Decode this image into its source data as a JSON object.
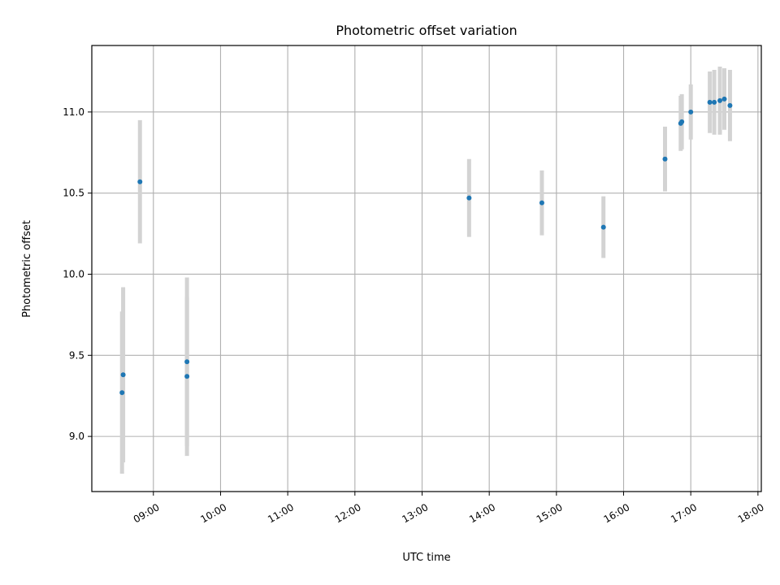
{
  "chart_data": {
    "type": "scatter",
    "title": "Photometric offset variation",
    "xlabel": "UTC time",
    "ylabel": "Photometric offset",
    "x_axis_type": "time",
    "xlim": [
      "08:05",
      "18:03"
    ],
    "ylim": [
      8.66,
      11.41
    ],
    "grid": true,
    "x_ticks": [
      "09:00",
      "10:00",
      "11:00",
      "12:00",
      "13:00",
      "14:00",
      "15:00",
      "16:00",
      "17:00",
      "18:00"
    ],
    "y_ticks": [
      9.0,
      9.5,
      10.0,
      10.5,
      11.0
    ],
    "y_tick_labels": [
      "9.0",
      "9.5",
      "10.0",
      "10.5",
      "11.0"
    ],
    "colors": {
      "point": "#1f77b4",
      "errorbar": "#d3d3d3",
      "grid": "#b0b0b0"
    },
    "points": [
      {
        "x": "08:32",
        "y": 9.27,
        "err": 0.5
      },
      {
        "x": "08:33",
        "y": 9.38,
        "err": 0.54
      },
      {
        "x": "08:48",
        "y": 10.57,
        "err": 0.38
      },
      {
        "x": "09:30",
        "y": 9.46,
        "err": 0.52
      },
      {
        "x": "09:30",
        "y": 9.37,
        "err": 0.49
      },
      {
        "x": "13:42",
        "y": 10.47,
        "err": 0.24
      },
      {
        "x": "14:47",
        "y": 10.44,
        "err": 0.2
      },
      {
        "x": "15:42",
        "y": 10.29,
        "err": 0.19
      },
      {
        "x": "16:37",
        "y": 10.71,
        "err": 0.2
      },
      {
        "x": "16:51",
        "y": 10.93,
        "err": 0.17
      },
      {
        "x": "16:52",
        "y": 10.94,
        "err": 0.17
      },
      {
        "x": "17:00",
        "y": 11.0,
        "err": 0.17
      },
      {
        "x": "17:17",
        "y": 11.06,
        "err": 0.19
      },
      {
        "x": "17:21",
        "y": 11.06,
        "err": 0.2
      },
      {
        "x": "17:26",
        "y": 11.07,
        "err": 0.21
      },
      {
        "x": "17:30",
        "y": 11.08,
        "err": 0.19
      },
      {
        "x": "17:35",
        "y": 11.04,
        "err": 0.22
      }
    ]
  }
}
